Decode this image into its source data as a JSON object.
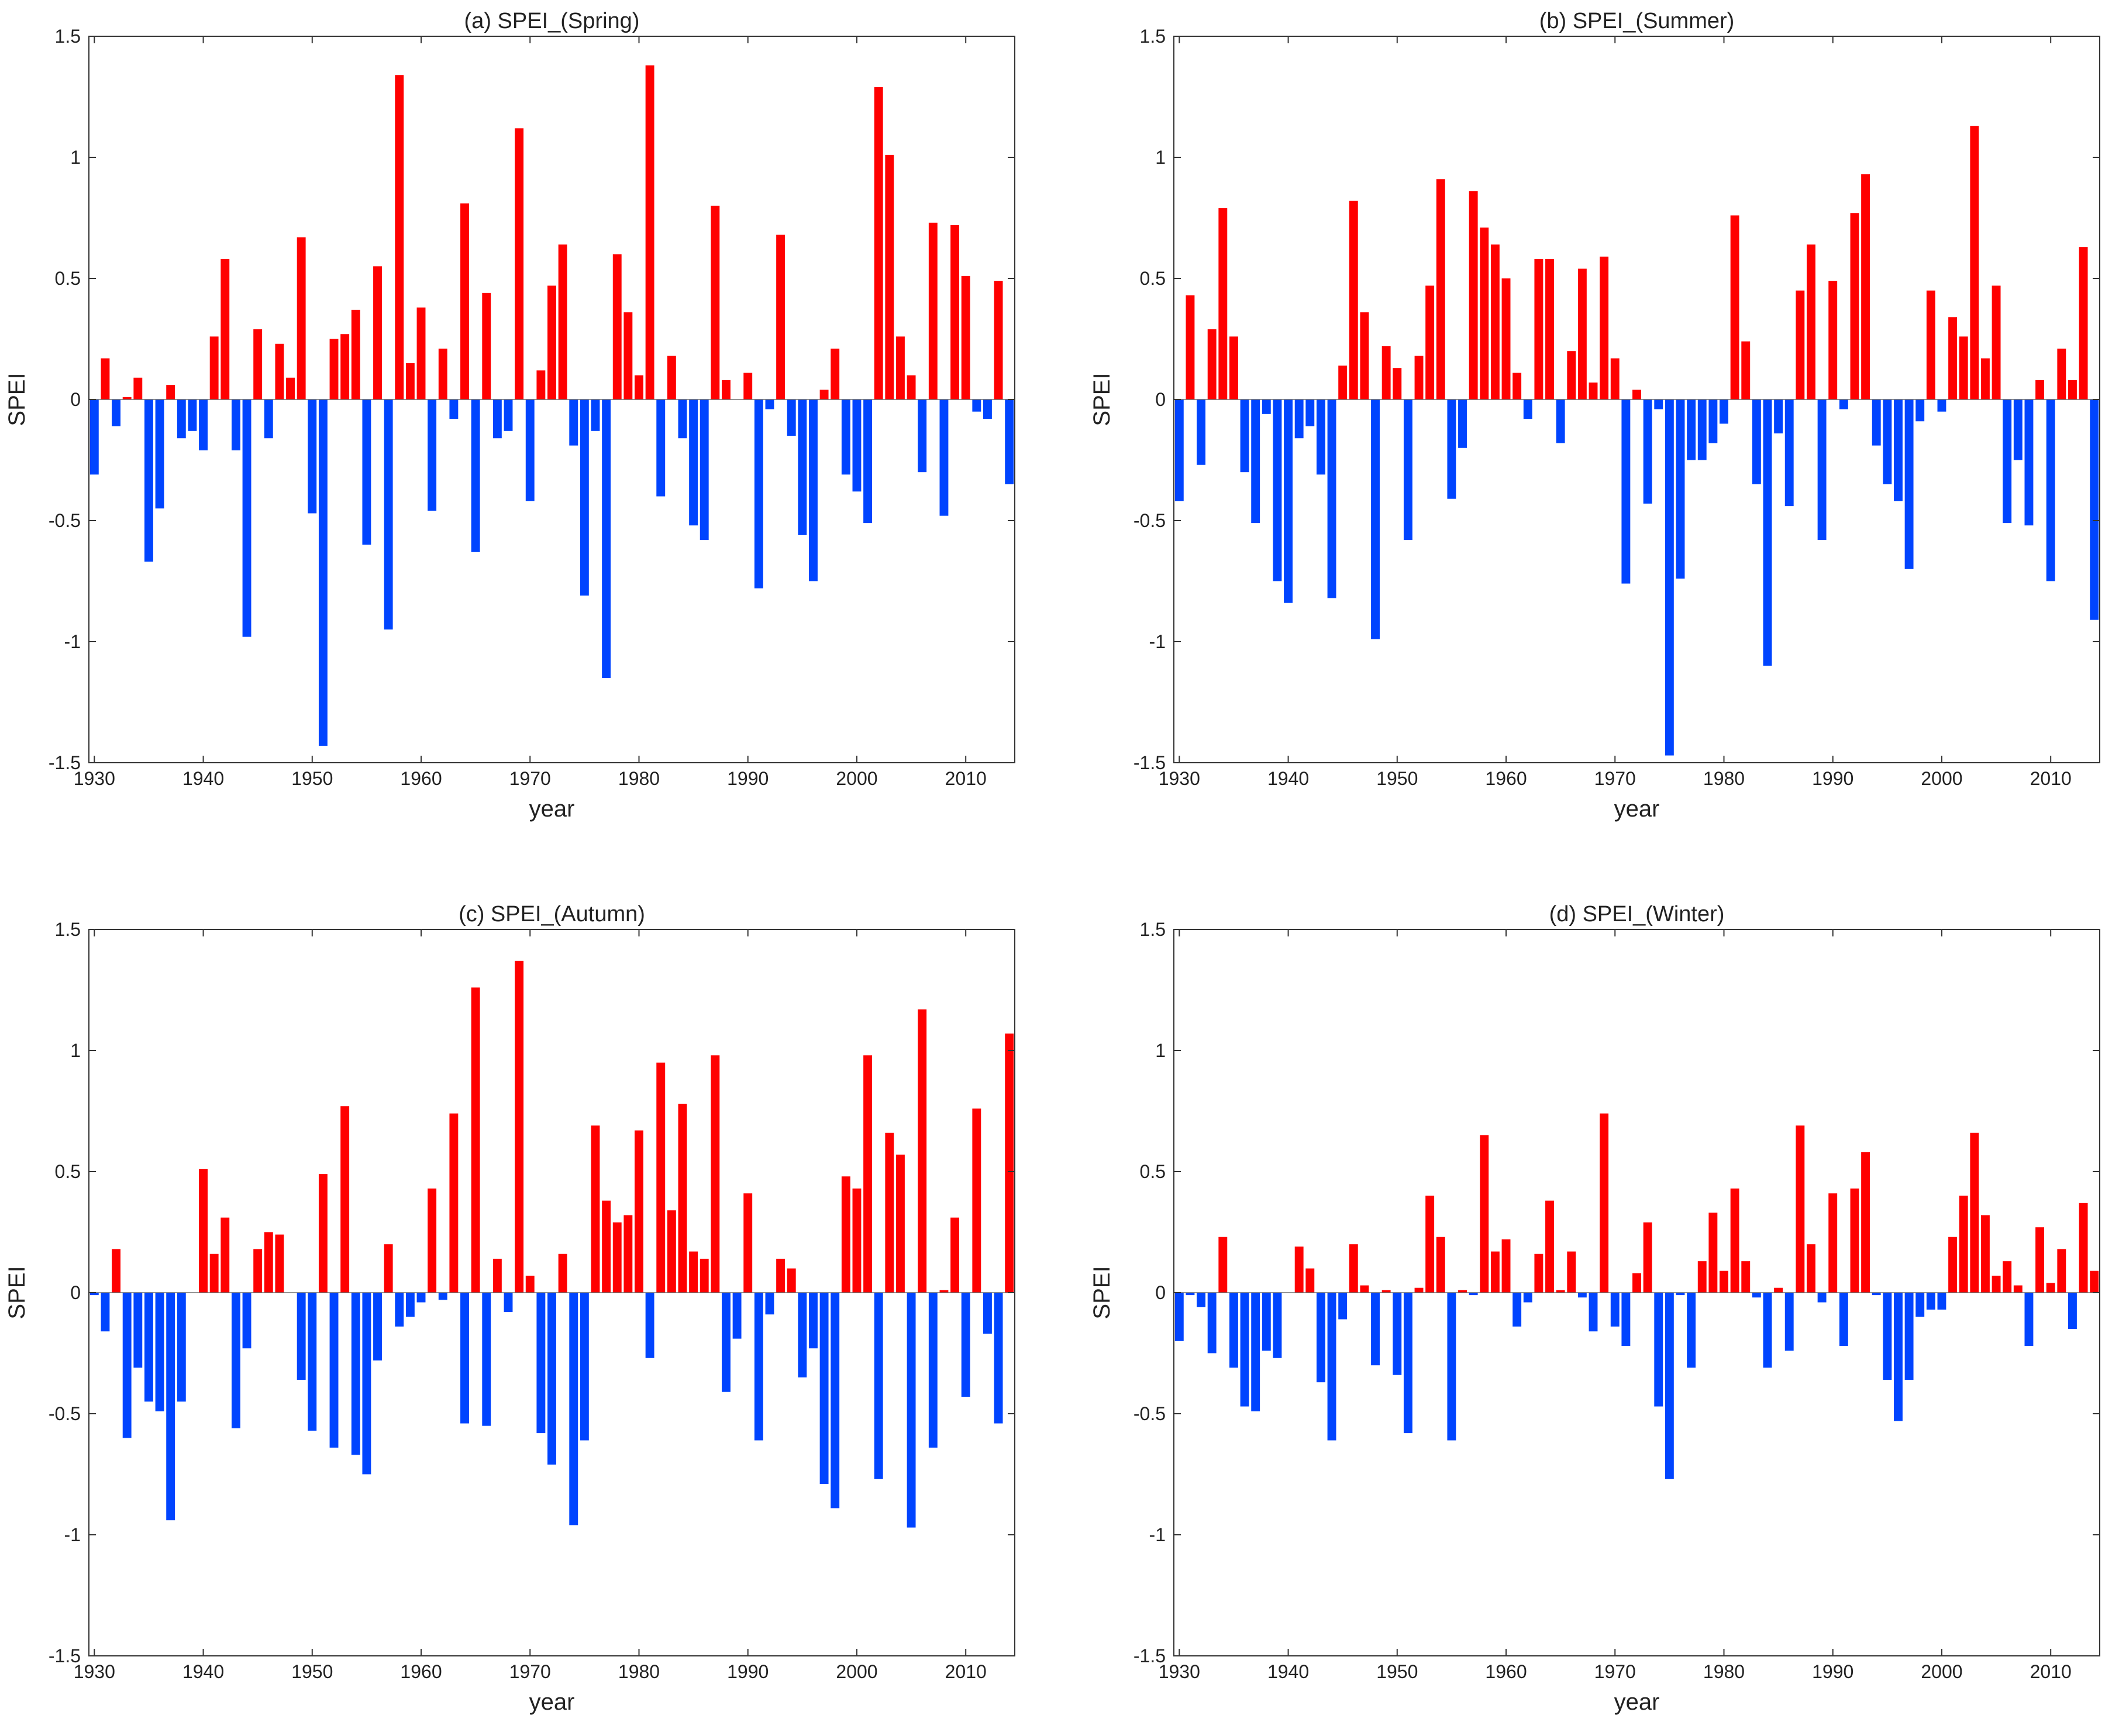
{
  "colors": {
    "positive": "#ff0000",
    "negative": "#0044ff",
    "frame": "#333333"
  },
  "chart_data": [
    {
      "type": "bar",
      "title": "(a) SPEI_(Spring)",
      "xlabel": "year",
      "ylabel": "SPEI",
      "xlim": [
        1929.5,
        2014.5
      ],
      "ylim": [
        -1.5,
        1.5
      ],
      "xticks": [
        1930,
        1940,
        1950,
        1960,
        1970,
        1980,
        1990,
        2000,
        2010
      ],
      "xtick_labels": [
        "1930",
        "1940",
        "1950",
        "1960",
        "1970",
        "1980",
        "1990",
        "2000",
        "2010"
      ],
      "yticks": [
        -1.5,
        -1,
        -0.5,
        0,
        0.5,
        1,
        1.5
      ],
      "ytick_labels": [
        "-1.5",
        "-1",
        "-0.5",
        "0",
        "0.5",
        "1",
        "1.5"
      ],
      "start_year": 1930,
      "values": [
        -0.31,
        0.17,
        -0.11,
        0.01,
        0.09,
        -0.67,
        -0.45,
        0.06,
        -0.16,
        -0.13,
        -0.21,
        0.26,
        0.58,
        -0.21,
        -0.98,
        0.29,
        -0.16,
        0.23,
        0.09,
        0.67,
        -0.47,
        -1.43,
        0.25,
        0.27,
        0.37,
        -0.6,
        0.55,
        -0.95,
        1.34,
        0.15,
        0.38,
        -0.46,
        0.21,
        -0.08,
        0.81,
        -0.63,
        0.44,
        -0.16,
        -0.13,
        1.12,
        -0.42,
        0.12,
        0.47,
        0.64,
        -0.19,
        -0.81,
        -0.13,
        -1.15,
        0.6,
        0.36,
        0.1,
        1.38,
        -0.4,
        0.18,
        -0.16,
        -0.52,
        -0.58,
        0.8,
        0.08,
        0.0,
        0.11,
        -0.78,
        -0.04,
        0.68,
        -0.15,
        -0.56,
        -0.75,
        0.04,
        0.21,
        -0.31,
        -0.38,
        -0.51,
        1.29,
        1.01,
        0.26,
        0.1,
        -0.3,
        0.73,
        -0.48,
        0.72,
        0.51,
        -0.05,
        -0.08,
        0.49,
        -0.35
      ]
    },
    {
      "type": "bar",
      "title": "(b) SPEI_(Summer)",
      "xlabel": "year",
      "ylabel": "SPEI",
      "xlim": [
        1929.5,
        2014.5
      ],
      "ylim": [
        -1.5,
        1.5
      ],
      "xticks": [
        1930,
        1940,
        1950,
        1960,
        1970,
        1980,
        1990,
        2000,
        2010
      ],
      "xtick_labels": [
        "1930",
        "1940",
        "1950",
        "1960",
        "1970",
        "1980",
        "1990",
        "2000",
        "2010"
      ],
      "yticks": [
        -1.5,
        -1,
        -0.5,
        0,
        0.5,
        1,
        1.5
      ],
      "ytick_labels": [
        "-1.5",
        "-1",
        "-0.5",
        "0",
        "0.5",
        "1",
        "1.5"
      ],
      "start_year": 1930,
      "values": [
        -0.42,
        0.43,
        -0.27,
        0.29,
        0.79,
        0.26,
        -0.3,
        -0.51,
        -0.06,
        -0.75,
        -0.84,
        -0.16,
        -0.11,
        -0.31,
        -0.82,
        0.14,
        0.82,
        0.36,
        -0.99,
        0.22,
        0.13,
        -0.58,
        0.18,
        0.47,
        0.91,
        -0.41,
        -0.2,
        0.86,
        0.71,
        0.64,
        0.5,
        0.11,
        -0.08,
        0.58,
        0.58,
        -0.18,
        0.2,
        0.54,
        0.07,
        0.59,
        0.17,
        -0.76,
        0.04,
        -0.43,
        -0.04,
        -1.47,
        -0.74,
        -0.25,
        -0.25,
        -0.18,
        -0.1,
        0.76,
        0.24,
        -0.35,
        -1.1,
        -0.14,
        -0.44,
        0.45,
        0.64,
        -0.58,
        0.49,
        -0.04,
        0.77,
        0.93,
        -0.19,
        -0.35,
        -0.42,
        -0.7,
        -0.09,
        0.45,
        -0.05,
        0.34,
        0.26,
        1.13,
        0.17,
        0.47,
        -0.51,
        -0.25,
        -0.52,
        0.08,
        -0.75,
        0.21,
        0.08,
        0.63,
        -0.91
      ]
    },
    {
      "type": "bar",
      "title": "(c) SPEI_(Autumn)",
      "xlabel": "year",
      "ylabel": "SPEI",
      "xlim": [
        1929.5,
        2014.5
      ],
      "ylim": [
        -1.5,
        1.5
      ],
      "xticks": [
        1930,
        1940,
        1950,
        1960,
        1970,
        1980,
        1990,
        2000,
        2010
      ],
      "xtick_labels": [
        "1930",
        "1940",
        "1950",
        "1960",
        "1970",
        "1980",
        "1990",
        "2000",
        "2010"
      ],
      "yticks": [
        -1.5,
        -1,
        -0.5,
        0,
        0.5,
        1,
        1.5
      ],
      "ytick_labels": [
        "-1.5",
        "-1",
        "-0.5",
        "0",
        "0.5",
        "1",
        "1.5"
      ],
      "start_year": 1930,
      "values": [
        -0.01,
        -0.16,
        0.18,
        -0.6,
        -0.31,
        -0.45,
        -0.49,
        -0.94,
        -0.45,
        0.0,
        0.51,
        0.16,
        0.31,
        -0.56,
        -0.23,
        0.18,
        0.25,
        0.24,
        0.0,
        -0.36,
        -0.57,
        0.49,
        -0.64,
        0.77,
        -0.67,
        -0.75,
        -0.28,
        0.2,
        -0.14,
        -0.1,
        -0.04,
        0.43,
        -0.03,
        0.74,
        -0.54,
        1.26,
        -0.55,
        0.14,
        -0.08,
        1.37,
        0.07,
        -0.58,
        -0.71,
        0.16,
        -0.96,
        -0.61,
        0.69,
        0.38,
        0.29,
        0.32,
        0.67,
        -0.27,
        0.95,
        0.34,
        0.78,
        0.17,
        0.14,
        0.98,
        -0.41,
        -0.19,
        0.41,
        -0.61,
        -0.09,
        0.14,
        0.1,
        -0.35,
        -0.23,
        -0.79,
        -0.89,
        0.48,
        0.43,
        0.98,
        -0.77,
        0.66,
        0.57,
        -0.97,
        1.17,
        -0.64,
        0.01,
        0.31,
        -0.43,
        0.76,
        -0.17,
        -0.54,
        1.07
      ]
    },
    {
      "type": "bar",
      "title": "(d) SPEI_(Winter)",
      "xlabel": "year",
      "ylabel": "SPEI",
      "xlim": [
        1929.5,
        2014.5
      ],
      "ylim": [
        -1.5,
        1.5
      ],
      "xticks": [
        1930,
        1940,
        1950,
        1960,
        1970,
        1980,
        1990,
        2000,
        2010
      ],
      "xtick_labels": [
        "1930",
        "1940",
        "1950",
        "1960",
        "1970",
        "1980",
        "1990",
        "2000",
        "2010"
      ],
      "yticks": [
        -1.5,
        -1,
        -0.5,
        0,
        0.5,
        1,
        1.5
      ],
      "ytick_labels": [
        "-1.5",
        "-1",
        "-0.5",
        "0",
        "0.5",
        "1",
        "1.5"
      ],
      "start_year": 1930,
      "values": [
        -0.2,
        -0.01,
        -0.06,
        -0.25,
        0.23,
        -0.31,
        -0.47,
        -0.49,
        -0.24,
        -0.27,
        0.0,
        0.19,
        0.1,
        -0.37,
        -0.61,
        -0.11,
        0.2,
        0.03,
        -0.3,
        0.01,
        -0.34,
        -0.58,
        0.02,
        0.4,
        0.23,
        -0.61,
        0.01,
        -0.01,
        0.65,
        0.17,
        0.22,
        -0.14,
        -0.04,
        0.16,
        0.38,
        0.01,
        0.17,
        -0.02,
        -0.16,
        0.74,
        -0.14,
        -0.22,
        0.08,
        0.29,
        -0.47,
        -0.77,
        -0.01,
        -0.31,
        0.13,
        0.33,
        0.09,
        0.43,
        0.13,
        -0.02,
        -0.31,
        0.02,
        -0.24,
        0.69,
        0.2,
        -0.04,
        0.41,
        -0.22,
        0.43,
        0.58,
        -0.01,
        -0.36,
        -0.53,
        -0.36,
        -0.1,
        -0.07,
        -0.07,
        0.23,
        0.4,
        0.66,
        0.32,
        0.07,
        0.13,
        0.03,
        -0.22,
        0.27,
        0.04,
        0.18,
        -0.15,
        0.37,
        0.09
      ]
    }
  ]
}
